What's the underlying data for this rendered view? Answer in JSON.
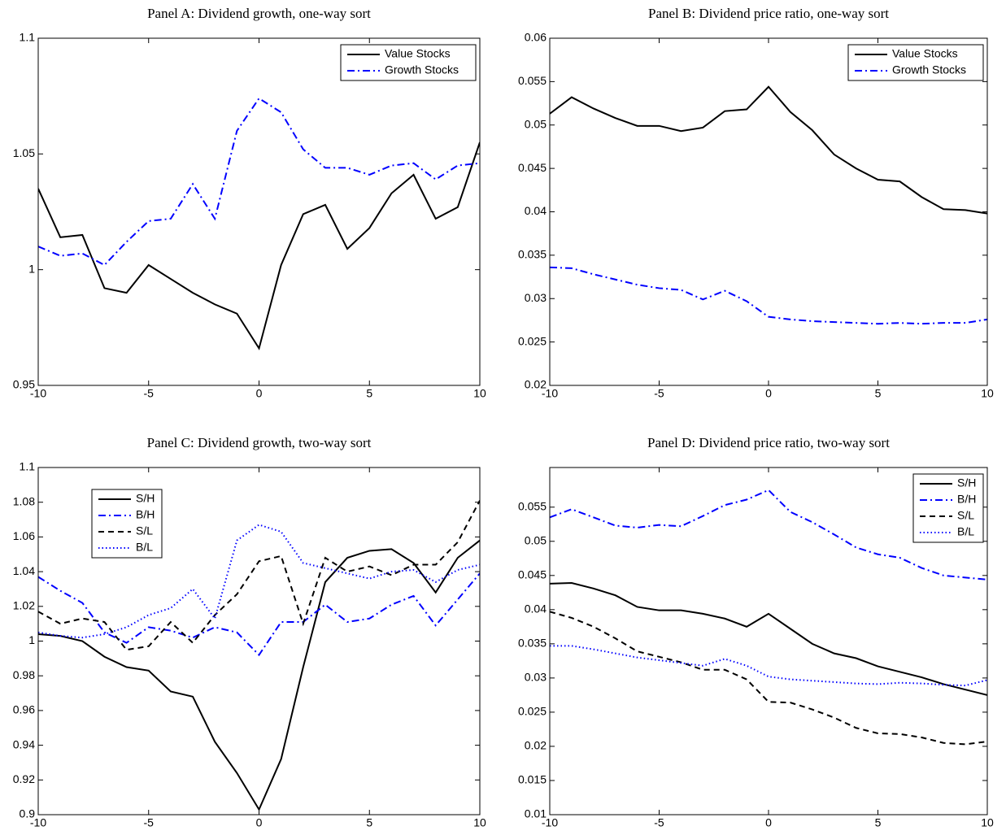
{
  "chart_data": [
    {
      "type": "line",
      "title": "Panel A: Dividend growth, one-way sort",
      "x": [
        -10,
        -9,
        -8,
        -7,
        -6,
        -5,
        -4,
        -3,
        -2,
        -1,
        0,
        1,
        2,
        3,
        4,
        5,
        6,
        7,
        8,
        9,
        10
      ],
      "series": [
        {
          "name": "Value Stocks",
          "color": "#000000",
          "dash": "solid",
          "values": [
            1.035,
            1.014,
            1.015,
            0.992,
            0.99,
            1.002,
            0.996,
            0.99,
            0.985,
            0.981,
            0.966,
            1.002,
            1.024,
            1.028,
            1.009,
            1.018,
            1.033,
            1.041,
            1.022,
            1.027,
            1.055
          ]
        },
        {
          "name": "Growth Stocks",
          "color": "#0000ff",
          "dash": "dashdot",
          "values": [
            1.01,
            1.006,
            1.007,
            1.002,
            1.012,
            1.021,
            1.022,
            1.037,
            1.022,
            1.06,
            1.074,
            1.068,
            1.052,
            1.044,
            1.044,
            1.041,
            1.045,
            1.046,
            1.039,
            1.045,
            1.046
          ]
        }
      ],
      "xlim": [
        -10,
        10
      ],
      "xticks": [
        -10,
        -5,
        0,
        5,
        10
      ],
      "ylim": [
        0.95,
        1.1
      ],
      "yticks": [
        0.95,
        1,
        1.05,
        1.1
      ],
      "legend": "northeast"
    },
    {
      "type": "line",
      "title": "Panel B: Dividend price ratio, one-way sort",
      "x": [
        -10,
        -9,
        -8,
        -7,
        -6,
        -5,
        -4,
        -3,
        -2,
        -1,
        0,
        1,
        2,
        3,
        4,
        5,
        6,
        7,
        8,
        9,
        10
      ],
      "series": [
        {
          "name": "Value Stocks",
          "color": "#000000",
          "dash": "solid",
          "values": [
            0.0513,
            0.0532,
            0.0519,
            0.0508,
            0.0499,
            0.0499,
            0.0493,
            0.0497,
            0.0516,
            0.0518,
            0.0544,
            0.0515,
            0.0494,
            0.0466,
            0.045,
            0.0437,
            0.0435,
            0.0417,
            0.0403,
            0.0402,
            0.0398
          ]
        },
        {
          "name": "Growth Stocks",
          "color": "#0000ff",
          "dash": "dashdot",
          "values": [
            0.0336,
            0.0335,
            0.0328,
            0.0322,
            0.0316,
            0.0312,
            0.031,
            0.0299,
            0.0309,
            0.0297,
            0.0279,
            0.0276,
            0.0274,
            0.0273,
            0.0272,
            0.0271,
            0.0272,
            0.0271,
            0.0272,
            0.0272,
            0.0276
          ]
        }
      ],
      "xlim": [
        -10,
        10
      ],
      "xticks": [
        -10,
        -5,
        0,
        5,
        10
      ],
      "ylim": [
        0.02,
        0.06
      ],
      "yticks": [
        0.02,
        0.025,
        0.03,
        0.035,
        0.04,
        0.045,
        0.05,
        0.055,
        0.06
      ],
      "legend": "northeast"
    },
    {
      "type": "line",
      "title": "Panel C: Dividend growth, two-way sort",
      "x": [
        -10,
        -9,
        -8,
        -7,
        -6,
        -5,
        -4,
        -3,
        -2,
        -1,
        0,
        1,
        2,
        3,
        4,
        5,
        6,
        7,
        8,
        9,
        10
      ],
      "series": [
        {
          "name": "S/H",
          "color": "#000000",
          "dash": "solid",
          "values": [
            1.004,
            1.003,
            1.0,
            0.991,
            0.985,
            0.983,
            0.971,
            0.968,
            0.942,
            0.924,
            0.903,
            0.932,
            0.985,
            1.034,
            1.048,
            1.052,
            1.053,
            1.045,
            1.028,
            1.048,
            1.058
          ]
        },
        {
          "name": "B/H",
          "color": "#0000ff",
          "dash": "dashdot",
          "values": [
            1.037,
            1.029,
            1.022,
            1.005,
            0.999,
            1.008,
            1.006,
            1.002,
            1.008,
            1.005,
            0.992,
            1.011,
            1.011,
            1.021,
            1.011,
            1.013,
            1.021,
            1.026,
            1.009,
            1.024,
            1.039
          ]
        },
        {
          "name": "S/L",
          "color": "#000000",
          "dash": "dashed",
          "values": [
            1.017,
            1.01,
            1.013,
            1.011,
            0.995,
            0.997,
            1.011,
            0.999,
            1.015,
            1.027,
            1.046,
            1.049,
            1.01,
            1.048,
            1.04,
            1.043,
            1.038,
            1.044,
            1.044,
            1.057,
            1.081
          ]
        },
        {
          "name": "B/L",
          "color": "#0000ff",
          "dash": "dotted",
          "values": [
            1.005,
            1.003,
            1.002,
            1.004,
            1.008,
            1.015,
            1.019,
            1.03,
            1.013,
            1.058,
            1.067,
            1.063,
            1.045,
            1.042,
            1.039,
            1.036,
            1.04,
            1.041,
            1.034,
            1.041,
            1.044
          ]
        }
      ],
      "xlim": [
        -10,
        10
      ],
      "xticks": [
        -10,
        -5,
        0,
        5,
        10
      ],
      "ylim": [
        0.9,
        1.1
      ],
      "yticks": [
        0.9,
        0.92,
        0.94,
        0.96,
        0.98,
        1,
        1.02,
        1.04,
        1.06,
        1.08,
        1.1
      ],
      "legend": "northwest"
    },
    {
      "type": "line",
      "title": "Panel D: Dividend price ratio, two-way sort",
      "x": [
        -10,
        -9,
        -8,
        -7,
        -6,
        -5,
        -4,
        -3,
        -2,
        -1,
        0,
        1,
        2,
        3,
        4,
        5,
        6,
        7,
        8,
        9,
        10
      ],
      "series": [
        {
          "name": "S/H",
          "color": "#000000",
          "dash": "solid",
          "values": [
            0.0438,
            0.0439,
            0.0431,
            0.0421,
            0.0404,
            0.0399,
            0.0399,
            0.0394,
            0.0387,
            0.0375,
            0.0394,
            0.0372,
            0.035,
            0.0336,
            0.0329,
            0.0317,
            0.0309,
            0.0301,
            0.0291,
            0.0283,
            0.0275
          ]
        },
        {
          "name": "B/H",
          "color": "#0000ff",
          "dash": "dashdot",
          "values": [
            0.0535,
            0.0547,
            0.0535,
            0.0523,
            0.052,
            0.0524,
            0.0522,
            0.0537,
            0.0553,
            0.0561,
            0.0575,
            0.0543,
            0.0528,
            0.051,
            0.0491,
            0.0481,
            0.0476,
            0.0461,
            0.045,
            0.0447,
            0.0444
          ]
        },
        {
          "name": "S/L",
          "color": "#000000",
          "dash": "dashed",
          "values": [
            0.0397,
            0.0388,
            0.0375,
            0.0358,
            0.0339,
            0.0331,
            0.0323,
            0.0312,
            0.0312,
            0.0298,
            0.0265,
            0.0264,
            0.0254,
            0.0242,
            0.0227,
            0.0219,
            0.0218,
            0.0213,
            0.0205,
            0.0203,
            0.0207
          ]
        },
        {
          "name": "B/L",
          "color": "#0000ff",
          "dash": "dotted",
          "values": [
            0.0347,
            0.0347,
            0.0342,
            0.0336,
            0.033,
            0.0326,
            0.0322,
            0.0318,
            0.0328,
            0.0318,
            0.0302,
            0.0298,
            0.0296,
            0.0294,
            0.0292,
            0.0291,
            0.0293,
            0.0292,
            0.029,
            0.0289,
            0.0297
          ]
        }
      ],
      "xlim": [
        -10,
        10
      ],
      "xticks": [
        -10,
        -5,
        0,
        5,
        10
      ],
      "ylim": [
        0.01,
        0.0608
      ],
      "yticks": [
        0.01,
        0.015,
        0.02,
        0.025,
        0.03,
        0.035,
        0.04,
        0.045,
        0.05,
        0.055
      ],
      "legend": "northeast"
    }
  ]
}
